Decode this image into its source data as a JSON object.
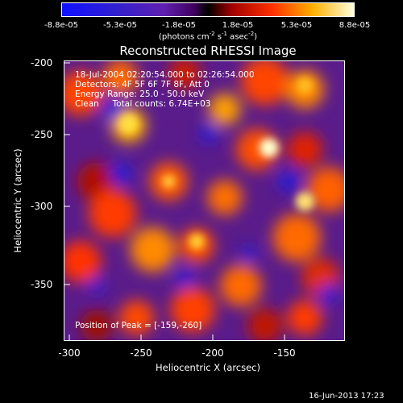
{
  "colorbar": {
    "ticks": [
      "-8.8e-05",
      "-5.3e-05",
      "-1.8e-05",
      "1.8e-05",
      "5.3e-05",
      "8.8e-05"
    ],
    "units_prefix": "(photons cm",
    "units_exp1": "-2",
    "units_mid": " s",
    "units_exp2": "-1",
    "units_mid2": " asec",
    "units_exp3": "-2",
    "units_suffix": ")"
  },
  "title": "Reconstructed RHESSI Image",
  "annotations": {
    "time": "18-Jul-2004 02:20:54.000 to 02:26:54.000",
    "detectors": "Detectors: 4F 5F 6F 7F 8F, Att 0",
    "energy": "Energy Range: 25.0 - 50.0 keV",
    "algorithm": "Clean     Total counts: 6.74E+03",
    "peak": "Position of Peak = [-159,-260]"
  },
  "axes": {
    "xlabel": "Heliocentric X (arcsec)",
    "ylabel": "Heliocentric Y (arcsec)",
    "xticks": [
      "-300",
      "-250",
      "-200",
      "-150"
    ],
    "yticks": [
      "-200",
      "-250",
      "-300",
      "-350"
    ]
  },
  "footer": "16-Jun-2013 17:23",
  "colors": {
    "foreground": "#ffffff",
    "background": "#000000"
  }
}
